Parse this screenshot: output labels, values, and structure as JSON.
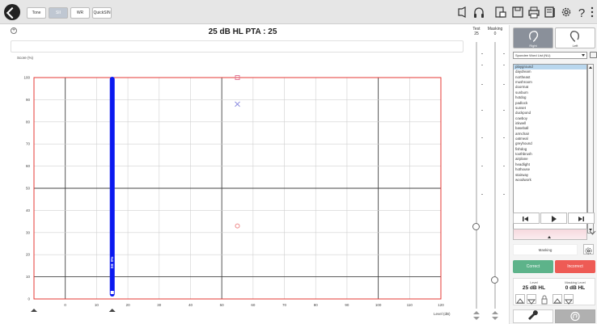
{
  "toolbar": {
    "tabs": [
      {
        "label": "Tone",
        "active": false
      },
      {
        "label": "SII",
        "active": true
      },
      {
        "label": "WR",
        "active": false
      },
      {
        "label": "QuickSIN",
        "active": false
      }
    ],
    "icons": [
      "speaker-mode-icon",
      "headphones-icon",
      "print-preview-icon",
      "save-icon",
      "print-icon",
      "report-icon",
      "gear-icon",
      "help-icon"
    ]
  },
  "summary": "25 dB HL   PTA : 25",
  "chart_data": {
    "type": "scatter",
    "ylabel": "Score (%)",
    "xlabel": "Level (dB)",
    "x_ticks": [
      "-10",
      "0",
      "10",
      "20",
      "30",
      "40",
      "50",
      "60",
      "70",
      "80",
      "90",
      "100",
      "110",
      "120"
    ],
    "y_ticks": [
      "0",
      "10",
      "20",
      "30",
      "40",
      "50",
      "60",
      "70",
      "80",
      "90",
      "100"
    ],
    "xlim": [
      -10,
      120
    ],
    "ylim": [
      0,
      100
    ],
    "presentation_bar": {
      "level": 15,
      "label": "SII: 0%"
    },
    "markers": [
      {
        "shape": "square",
        "x": 55,
        "y": 100,
        "color": "#e07a9a"
      },
      {
        "shape": "cross",
        "x": 55,
        "y": 88,
        "color": "#8c8ce0"
      },
      {
        "shape": "circle",
        "x": 55,
        "y": 33,
        "color": "#ee8888"
      }
    ]
  },
  "columns": {
    "test": {
      "title": "Test",
      "value": "25"
    },
    "masking": {
      "title": "Masking",
      "value": "0"
    }
  },
  "panel": {
    "ear_right": "Right",
    "ear_left": "Left",
    "list_name": "Spondee Word List (NU)",
    "words": [
      "playground",
      "daydream",
      "northeast",
      "mushroom",
      "doormat",
      "sunburn",
      "hotdog",
      "padlock",
      "sunset",
      "duckpond",
      "cowboy",
      "inkwell",
      "baseball",
      "armchair",
      "oatmeal",
      "greyhound",
      "fishdog",
      "toothbrush",
      "airplane",
      "headlight",
      "hothouse",
      "stairway",
      "woodwork"
    ],
    "selected_index": 0,
    "masking_label": "Masking",
    "correct": "Correct",
    "incorrect": "Incorrect",
    "level_caption": "Level",
    "level_value": "25 dB HL",
    "masking_caption": "Masking Level",
    "masking_value": "0 dB HL"
  }
}
